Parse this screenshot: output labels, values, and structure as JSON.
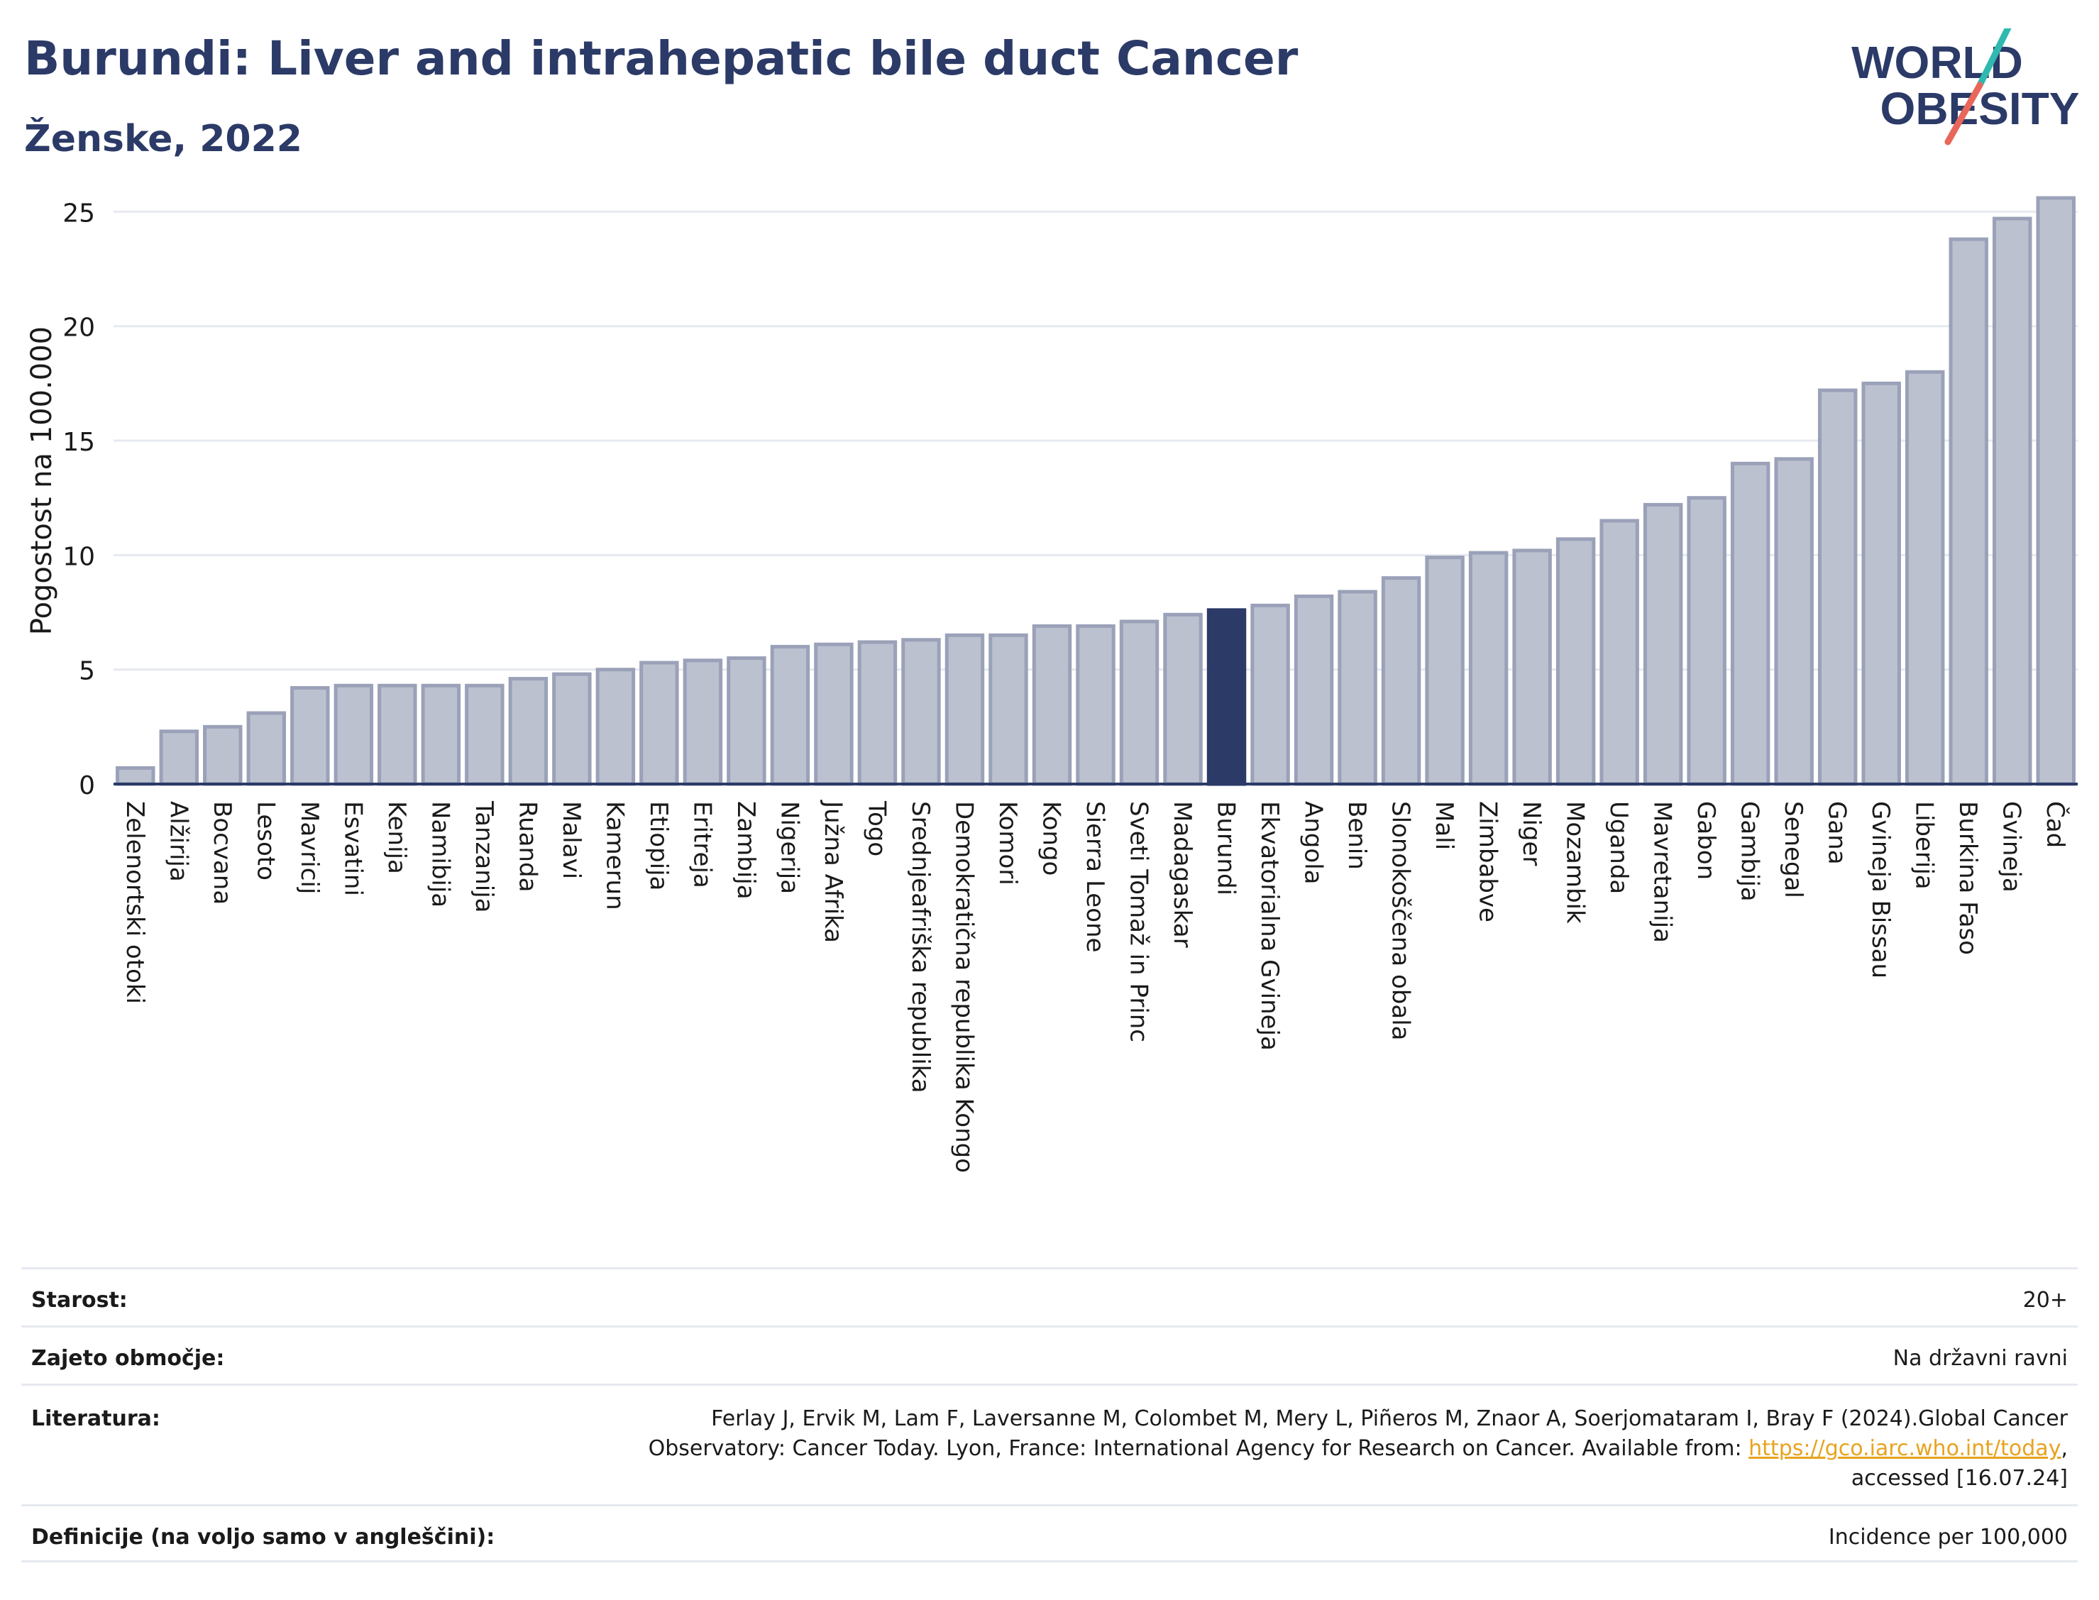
{
  "header": {
    "title": "Burundi: Liver and intrahepatic bile duct Cancer",
    "subtitle": "Ženske, 2022"
  },
  "logo": {
    "line1": "WORLD",
    "line2": "OBESITY"
  },
  "colors": {
    "bar": "#bcc1d0",
    "bar_stroke": "#9aa1b8",
    "highlight": "#2b3a67",
    "grid": "#e6e9f0",
    "title": "#2b3a67"
  },
  "chart_data": {
    "type": "bar",
    "ylabel": "Pogostost na 100.000",
    "ylim": [
      0,
      26.5
    ],
    "yticks": [
      0,
      5,
      10,
      15,
      20,
      25
    ],
    "grid": true,
    "highlight": "Burundi",
    "categories": [
      "Zelenortski otoki",
      "Alžirija",
      "Bocvana",
      "Lesoto",
      "Mavricij",
      "Esvatini",
      "Kenija",
      "Namibija",
      "Tanzanija",
      "Ruanda",
      "Malavi",
      "Kamerun",
      "Etiopija",
      "Eritreja",
      "Zambija",
      "Nigerija",
      "Južna Afrika",
      "Togo",
      "Srednjeafriška republika",
      "Demokratična republika Kongo",
      "Komori",
      "Kongo",
      "Sierra Leone",
      "Sveti Tomaž in Princ",
      "Madagaskar",
      "Burundi",
      "Ekvatorialna Gvineja",
      "Angola",
      "Benin",
      "Slonokoščena obala",
      "Mali",
      "Zimbabve",
      "Niger",
      "Mozambik",
      "Uganda",
      "Mavretanija",
      "Gabon",
      "Gambija",
      "Senegal",
      "Gana",
      "Gvineja Bissau",
      "Liberija",
      "Burkina Faso",
      "Gvineja",
      "Čad"
    ],
    "values": [
      0.7,
      2.3,
      2.5,
      3.1,
      4.2,
      4.3,
      4.3,
      4.3,
      4.3,
      4.6,
      4.8,
      5.0,
      5.3,
      5.4,
      5.5,
      6.0,
      6.1,
      6.2,
      6.3,
      6.5,
      6.5,
      6.9,
      6.9,
      7.1,
      7.4,
      7.6,
      7.8,
      8.2,
      8.4,
      9.0,
      9.9,
      10.1,
      10.2,
      10.7,
      11.5,
      12.2,
      12.5,
      14.0,
      14.2,
      17.2,
      17.5,
      18.0,
      23.8,
      24.7,
      25.6
    ]
  },
  "info": {
    "age_label": "Starost:",
    "age_value": "20+",
    "coverage_label": "Zajeto območje:",
    "coverage_value": "Na državni ravni",
    "references_label": "Literatura:",
    "references_line1": "Ferlay J, Ervik M, Lam F, Laversanne M, Colombet M, Mery L, Piñeros M, Znaor A, Soerjomataram I, Bray F (2024).Global Cancer",
    "references_line2": "Observatory: Cancer Today. Lyon, France: International Agency for Research on Cancer. Available from: ",
    "references_link": "https://gco.iarc.who.int/today",
    "references_line2_end": ",",
    "references_line3": "accessed [16.07.24]",
    "definitions_label": "Definicije (na voljo samo v angleščini):",
    "definitions_value": "Incidence per 100,000"
  }
}
